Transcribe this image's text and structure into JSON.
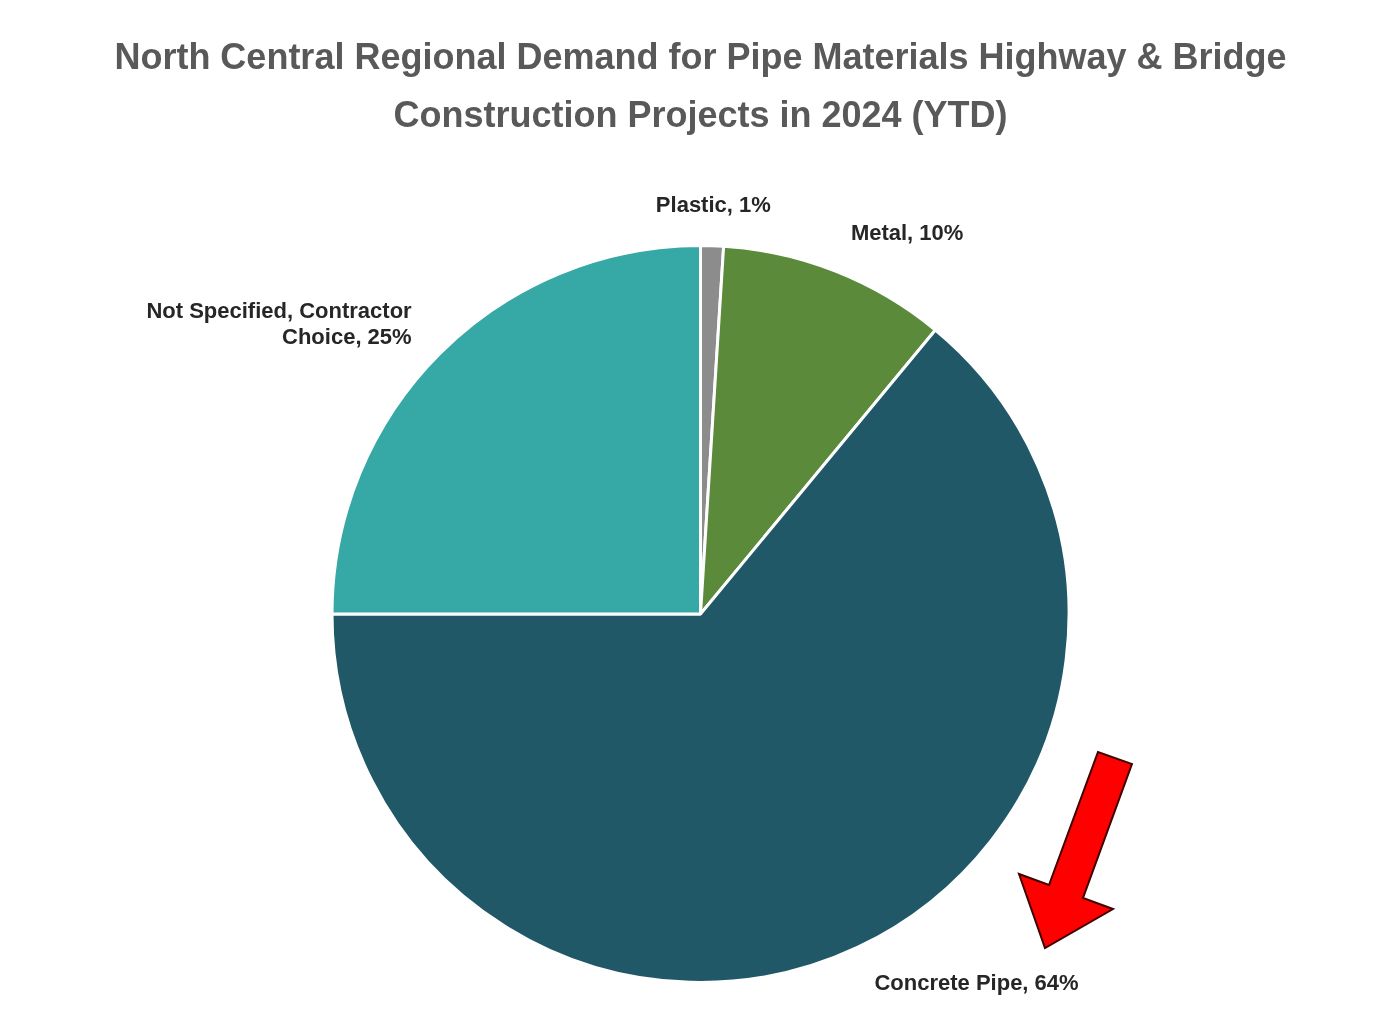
{
  "chart_data": {
    "type": "pie",
    "title": "North Central Regional Demand for Pipe Materials Highway & Bridge Construction Projects in 2024 (YTD)",
    "categories": [
      "Plastic",
      "Metal",
      "Concrete Pipe",
      "Not Specified, Contractor Choice"
    ],
    "values": [
      1,
      10,
      64,
      25
    ],
    "colors": [
      "#8c8c8c",
      "#5b8a3a",
      "#215868",
      "#36a8a6"
    ],
    "value_labels": [
      "1%",
      "10%",
      "64%",
      "25%"
    ],
    "legend": false
  }
}
